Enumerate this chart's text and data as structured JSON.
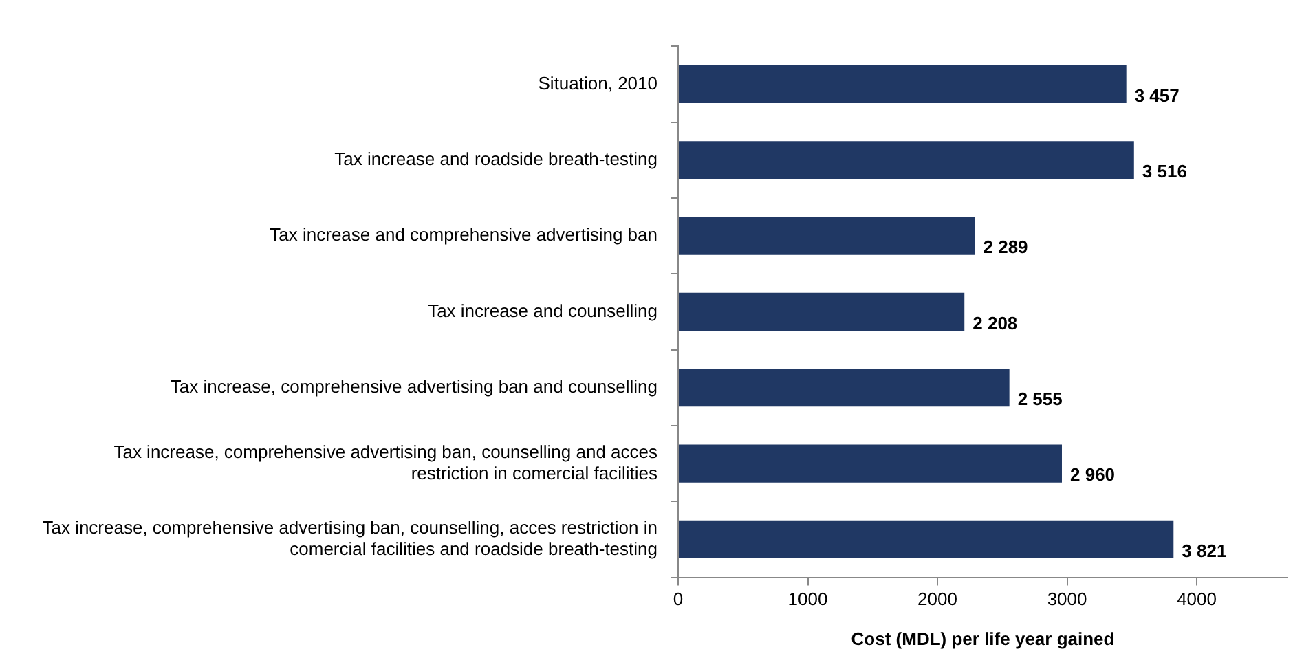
{
  "chart_data": {
    "type": "bar",
    "orientation": "horizontal",
    "xlabel": "Cost (MDL) per life year gained",
    "categories": [
      "Situation, 2010",
      "Tax increase and roadside breath-testing",
      "Tax increase and comprehensive advertising ban",
      "Tax increase and counselling",
      "Tax increase, comprehensive advertising ban and counselling",
      "Tax increase, comprehensive advertising ban, counselling and acces restriction in comercial facilities",
      "Tax increase, comprehensive advertising ban, counselling, acces restriction in comercial facilities and roadside breath-testing"
    ],
    "values": [
      3457,
      3516,
      2289,
      2208,
      2555,
      2960,
      3821
    ],
    "value_labels": [
      "3 457",
      "3 516",
      "2 289",
      "2 208",
      "2 555",
      "2 960",
      "3 821"
    ],
    "color": "#203864",
    "xlim": [
      0,
      4700
    ],
    "xticks": [
      0,
      1000,
      2000,
      3000,
      4000
    ],
    "grid": false,
    "legend": false
  }
}
